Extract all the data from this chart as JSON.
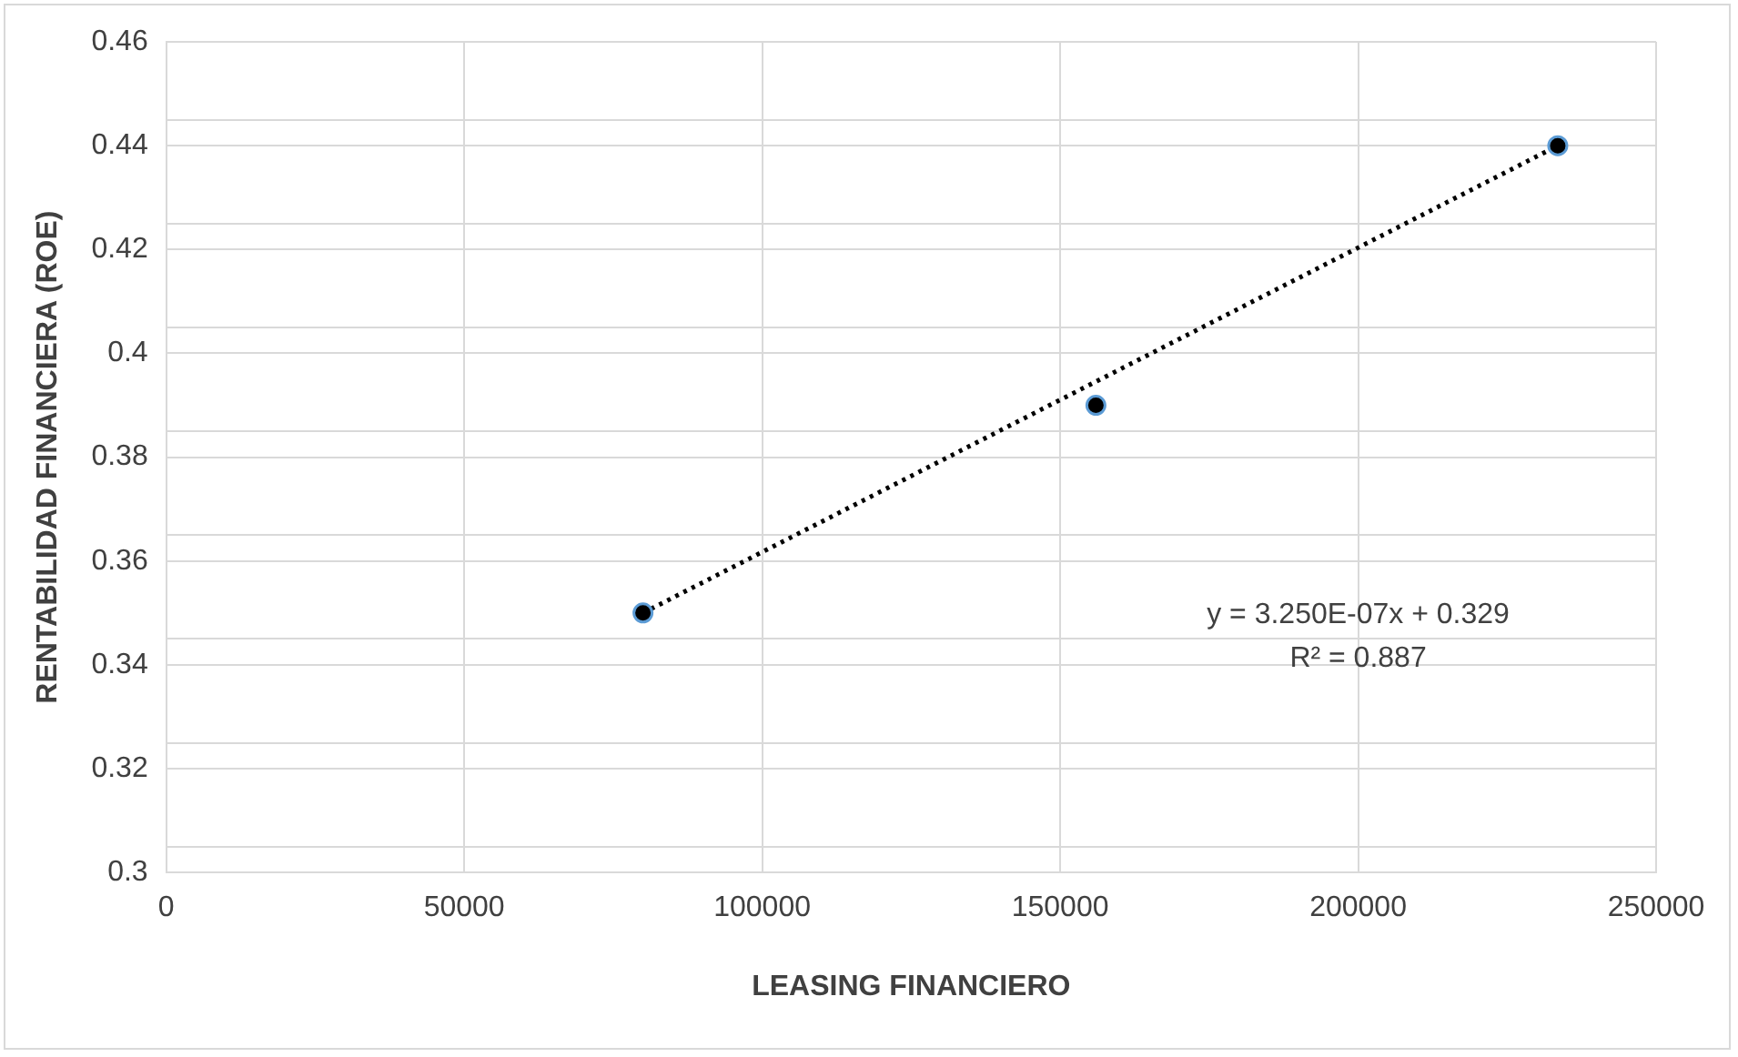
{
  "chart_data": {
    "type": "scatter",
    "xlabel": "LEASING FINANCIERO",
    "ylabel": "RENTABILIDAD FINANCIERA (ROE)",
    "series": [
      {
        "x": [
          80000,
          156000,
          233500
        ],
        "values": [
          0.35,
          0.39,
          0.44
        ],
        "color": "#000000",
        "marker": "circle"
      },
      {
        "type": "line",
        "x": [
          80000,
          233500
        ],
        "values": [
          0.35,
          0.44
        ],
        "color": "#000000",
        "line_style": "dotted",
        "marker": "none"
      }
    ],
    "xlim": [
      0,
      250000
    ],
    "xticks": [
      0,
      50000,
      100000,
      150000,
      200000,
      250000
    ],
    "ylim": [
      0.3,
      0.46
    ],
    "yticks": [
      0.3,
      {
        "value": 0.305,
        "label": null
      },
      0.32,
      {
        "value": 0.325,
        "label": null
      },
      0.34,
      {
        "value": 0.345,
        "label": null
      },
      0.36,
      {
        "value": 0.365,
        "label": null
      },
      0.38,
      {
        "value": 0.385,
        "label": null
      },
      0.4,
      {
        "value": 0.405,
        "label": null
      },
      0.42,
      {
        "value": 0.425,
        "label": null
      },
      0.44,
      {
        "value": 0.445,
        "label": null
      },
      0.46
    ],
    "grid": true,
    "legend": false,
    "annotations": [
      "y = 3.250E-07x + 0.329",
      "R² = 0.887"
    ]
  }
}
